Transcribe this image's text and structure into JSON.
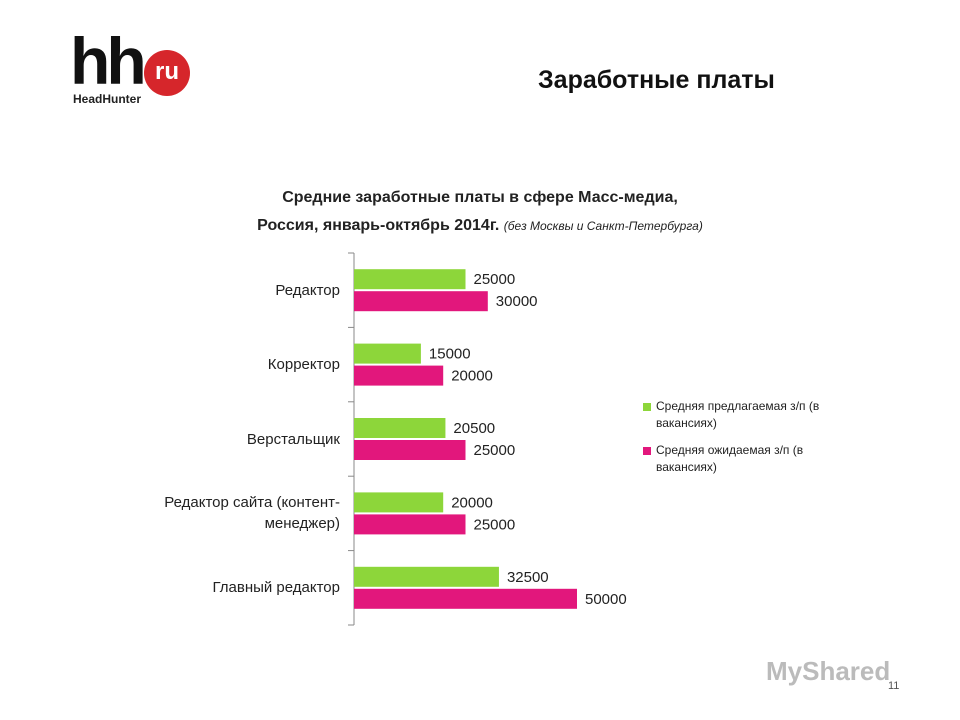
{
  "slide": {
    "heading": "Заработные платы",
    "logo": {
      "mark": "hh",
      "badge": "ru",
      "name": "HeadHunter"
    },
    "page_number": "11",
    "watermark": "MyShared"
  },
  "chart_data": {
    "type": "hbar",
    "title": [
      "Средние заработные платы в сфере Масс-медиа,",
      "Россия, январь-октябрь  2014г."
    ],
    "subtitle": "(без Москвы и Санкт-Петербурга)",
    "categories": [
      "Редактор",
      "Корректор",
      "Верстальщик",
      "Редактор сайта (контент-менеджер)",
      "Главный редактор"
    ],
    "series": [
      {
        "name": "Средняя предлагаемая з/п (в вакансиях)",
        "color": "#8dd63a",
        "values": [
          25000,
          15000,
          20500,
          20000,
          32500
        ]
      },
      {
        "name": "Средняя ожидаемая з/п (в вакансиях)",
        "color": "#e2177c",
        "values": [
          30000,
          20000,
          25000,
          25000,
          50000
        ]
      }
    ],
    "legend": "right"
  }
}
